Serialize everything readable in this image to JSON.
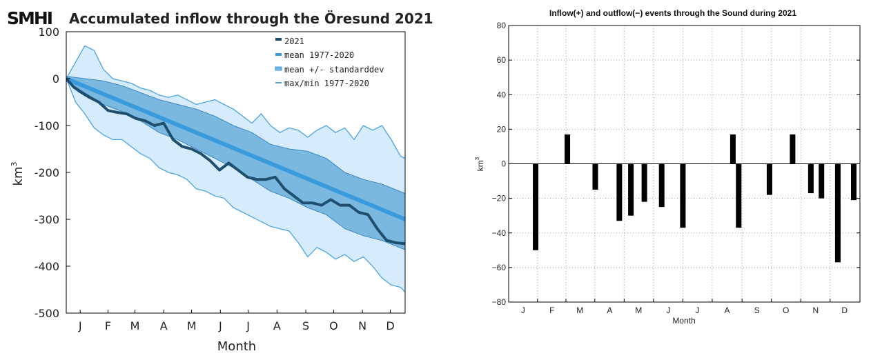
{
  "logo": "SMHI",
  "chart_data": [
    {
      "type": "area",
      "title": "Accumulated inflow through the Öresund 2021",
      "xlabel": "Month",
      "ylabel": "km",
      "ylabel_sup": "3",
      "ylim": [
        -500,
        100
      ],
      "yticks": [
        100,
        0,
        -100,
        -200,
        -300,
        -400,
        -500
      ],
      "xlim": [
        0,
        365
      ],
      "months": [
        "J",
        "F",
        "M",
        "A",
        "M",
        "J",
        "J",
        "A",
        "S",
        "O",
        "N",
        "D"
      ],
      "month_days": [
        15,
        45,
        74,
        105,
        135,
        166,
        196,
        227,
        258,
        288,
        319,
        349
      ],
      "legend": [
        "2021",
        "mean 1977-2020",
        "mean +/- standarddev",
        "max/min 1977-2020"
      ],
      "colors": {
        "line2021": "#1f4f6e",
        "mean": "#3a9bdc",
        "std": "#7ab8e0",
        "maxmin": "#d6ebfb",
        "edge": "#4aa3e6"
      },
      "series": [
        {
          "name": "2021",
          "x": [
            0,
            8,
            15,
            25,
            35,
            45,
            55,
            65,
            75,
            85,
            95,
            105,
            115,
            125,
            135,
            145,
            155,
            165,
            175,
            185,
            195,
            205,
            215,
            225,
            235,
            245,
            255,
            265,
            275,
            285,
            295,
            305,
            315,
            325,
            335,
            345,
            355,
            365
          ],
          "values": [
            0,
            -18,
            -28,
            -40,
            -50,
            -68,
            -72,
            -75,
            -85,
            -90,
            -100,
            -95,
            -130,
            -145,
            -150,
            -160,
            -175,
            -195,
            -180,
            -195,
            -210,
            -215,
            -215,
            -210,
            -235,
            -250,
            -265,
            -265,
            -270,
            -258,
            -270,
            -270,
            -285,
            -290,
            -320,
            -345,
            -350,
            -352
          ]
        },
        {
          "name": "mean 1977-2020",
          "x": [
            0,
            365
          ],
          "values": [
            0,
            -300
          ]
        },
        {
          "name": "mean +/- standarddev",
          "x": [
            0,
            20,
            40,
            60,
            80,
            100,
            120,
            140,
            160,
            180,
            200,
            220,
            240,
            260,
            280,
            300,
            320,
            340,
            365
          ],
          "upper": [
            5,
            0,
            -5,
            -15,
            -30,
            -45,
            -55,
            -65,
            -80,
            -100,
            -115,
            -140,
            -150,
            -155,
            -170,
            -200,
            -215,
            -225,
            -245
          ],
          "lower": [
            -5,
            -30,
            -55,
            -70,
            -90,
            -115,
            -130,
            -150,
            -170,
            -190,
            -215,
            -240,
            -255,
            -275,
            -290,
            -320,
            -335,
            -345,
            -365
          ]
        },
        {
          "name": "max/min 1977-2020",
          "x": [
            0,
            10,
            20,
            30,
            40,
            50,
            60,
            70,
            80,
            90,
            100,
            110,
            120,
            130,
            140,
            150,
            160,
            170,
            180,
            190,
            200,
            210,
            220,
            230,
            240,
            250,
            260,
            270,
            280,
            290,
            300,
            310,
            320,
            330,
            340,
            350,
            360,
            365
          ],
          "upper": [
            0,
            35,
            70,
            60,
            20,
            0,
            -5,
            -10,
            -20,
            -25,
            -35,
            -40,
            -35,
            -45,
            -55,
            -50,
            -45,
            -55,
            -65,
            -80,
            -95,
            -75,
            -100,
            -115,
            -105,
            -110,
            -125,
            -110,
            -100,
            -115,
            -105,
            -130,
            -100,
            -110,
            -100,
            -130,
            -165,
            -170
          ],
          "lower": [
            0,
            -50,
            -75,
            -105,
            -120,
            -130,
            -130,
            -145,
            -160,
            -170,
            -190,
            -200,
            -205,
            -215,
            -235,
            -240,
            -250,
            -255,
            -275,
            -285,
            -295,
            -305,
            -315,
            -320,
            -325,
            -350,
            -380,
            -360,
            -370,
            -385,
            -375,
            -390,
            -380,
            -400,
            -425,
            -440,
            -445,
            -455
          ]
        }
      ]
    },
    {
      "type": "bar",
      "title": "Inflow(+) and outflow(−) events through the Sound during 2021",
      "xlabel": "Month",
      "ylabel": "km",
      "ylabel_sup": "3",
      "ylim": [
        -80,
        80
      ],
      "yticks": [
        80,
        60,
        40,
        20,
        0,
        -20,
        -40,
        -60,
        -80
      ],
      "xlim": [
        0,
        365
      ],
      "months": [
        "J",
        "F",
        "M",
        "A",
        "M",
        "J",
        "J",
        "A",
        "S",
        "O",
        "N",
        "D"
      ],
      "month_days": [
        15,
        45,
        74,
        105,
        135,
        166,
        196,
        227,
        258,
        288,
        319,
        349
      ],
      "grid": true,
      "bars": {
        "x": [
          28,
          61,
          90,
          115,
          127,
          141,
          159,
          181,
          233,
          239,
          271,
          295,
          314,
          325,
          342,
          367
        ],
        "values": [
          -50,
          17,
          -15,
          -33,
          -30,
          -22,
          -25,
          -37,
          17,
          -37,
          -18,
          17,
          -17,
          -20,
          -57,
          -21
        ]
      }
    }
  ]
}
